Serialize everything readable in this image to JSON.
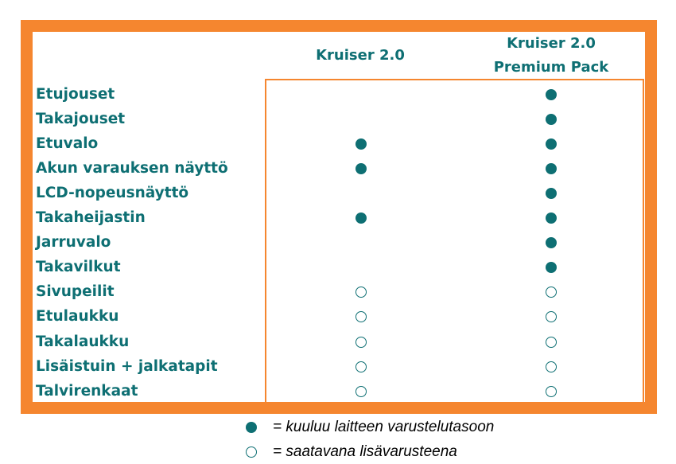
{
  "columns": [
    {
      "lines": [
        "Kruiser 2.0"
      ]
    },
    {
      "lines": [
        "Kruiser 2.0",
        "Premium Pack"
      ]
    }
  ],
  "rows": [
    {
      "label": "Etujouset",
      "c1": "none",
      "c2": "included"
    },
    {
      "label": "Takajouset",
      "c1": "none",
      "c2": "included"
    },
    {
      "label": "Etuvalo",
      "c1": "included",
      "c2": "included"
    },
    {
      "label": "Akun varauksen näyttö",
      "c1": "included",
      "c2": "included"
    },
    {
      "label": "LCD-nopeusnäyttö",
      "c1": "none",
      "c2": "included"
    },
    {
      "label": "Takaheijastin",
      "c1": "included",
      "c2": "included"
    },
    {
      "label": "Jarruvalo",
      "c1": "none",
      "c2": "included"
    },
    {
      "label": "Takavilkut",
      "c1": "none",
      "c2": "included"
    },
    {
      "label": "Sivupeilit",
      "c1": "optional",
      "c2": "optional"
    },
    {
      "label": "Etulaukku",
      "c1": "optional",
      "c2": "optional"
    },
    {
      "label": "Takalaukku",
      "c1": "optional",
      "c2": "optional"
    },
    {
      "label": "Lisäistuin + jalkatapit",
      "c1": "optional",
      "c2": "optional"
    },
    {
      "label": "Talvirenkaat",
      "c1": "optional",
      "c2": "optional"
    }
  ],
  "legend": {
    "included": "= kuuluu laitteen varustelutasoon",
    "optional": "= saatavana lisävarusteena"
  },
  "colors": {
    "accent": "#f5862f",
    "text": "#0e6f73"
  }
}
